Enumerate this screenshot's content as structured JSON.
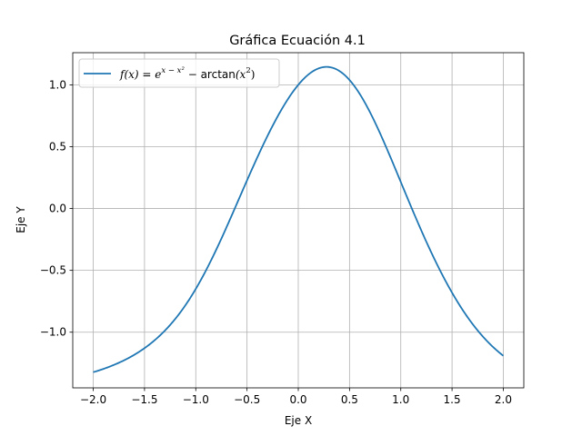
{
  "chart_data": {
    "type": "line",
    "title": "Gráfica Ecuación 4.1",
    "xlabel": "Eje X",
    "ylabel": "Eje Y",
    "xlim": [
      -2.2,
      2.2
    ],
    "ylim": [
      -1.45,
      1.26
    ],
    "xticks": [
      -2.0,
      -1.5,
      -1.0,
      -0.5,
      0.0,
      0.5,
      1.0,
      1.5,
      2.0
    ],
    "xtick_labels": [
      "−2.0",
      "−1.5",
      "−1.0",
      "−0.5",
      "0.0",
      "0.5",
      "1.0",
      "1.5",
      "2.0"
    ],
    "yticks": [
      -1.0,
      -0.5,
      0.0,
      0.5,
      1.0
    ],
    "ytick_labels": [
      "−1.0",
      "−0.5",
      "0.0",
      "0.5",
      "1.0"
    ],
    "grid": true,
    "legend_position": "top-left",
    "legend": {
      "prefix": "f(x) = e",
      "exponent": "x − x²",
      "middle": " − ",
      "fn": "arctan",
      "suffix_open": "(x",
      "suffix_sup": "2",
      "suffix_close": ")"
    },
    "series": [
      {
        "name": "f(x) = e^{x − x²} − arctan(x²)",
        "color": "#1f77b4",
        "x": [
          -2.0,
          -1.9,
          -1.8,
          -1.7,
          -1.6,
          -1.5,
          -1.4,
          -1.3,
          -1.2,
          -1.1,
          -1.0,
          -0.9,
          -0.8,
          -0.7,
          -0.6,
          -0.5,
          -0.4,
          -0.3,
          -0.2,
          -0.1,
          0.0,
          0.1,
          0.2,
          0.3,
          0.4,
          0.5,
          0.6,
          0.7,
          0.8,
          0.9,
          1.0,
          1.1,
          1.2,
          1.3,
          1.4,
          1.5,
          1.6,
          1.7,
          1.8,
          1.9,
          2.0
        ],
        "y": [
          -1.3233,
          -1.299,
          -1.271,
          -1.2382,
          -1.1985,
          -1.1492,
          -1.0863,
          -1.0037,
          -0.8956,
          -0.7559,
          -0.6501,
          -0.4546,
          -0.2567,
          -0.0626,
          0.1195,
          0.2824,
          0.603,
          0.6757,
          0.7885,
          0.8938,
          1.0,
          1.084,
          1.1328,
          1.1413,
          1.1111,
          1.0383,
          0.9311,
          0.7925,
          0.5724,
          0.3804,
          0.2146,
          0.0221,
          -0.18,
          -0.3813,
          -0.5676,
          -0.7296,
          -0.8604,
          -0.9607,
          -1.0433,
          -1.1224,
          -1.1872
        ]
      }
    ]
  }
}
